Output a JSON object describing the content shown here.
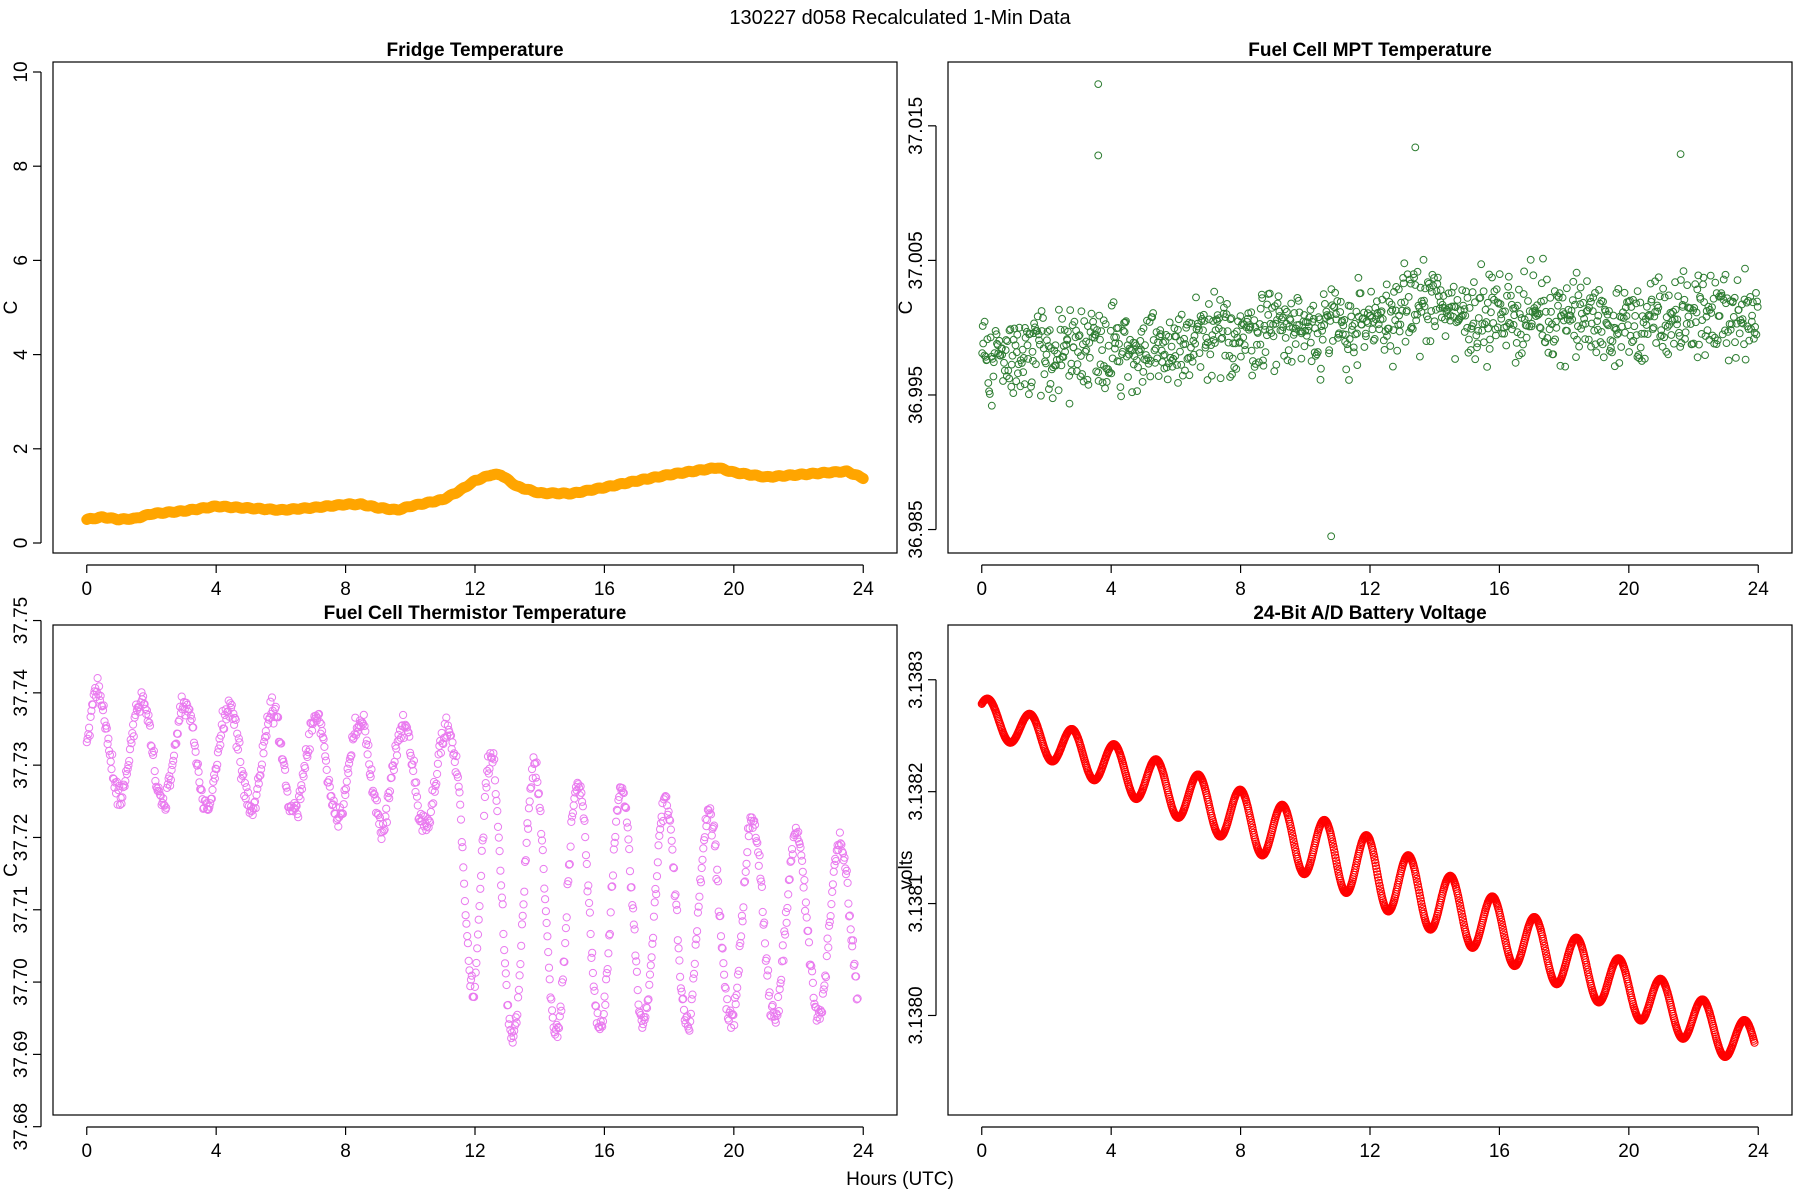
{
  "main_title": "130227   d058   Recalculated 1-Min Data",
  "xlabel": "Hours (UTC)",
  "colors": {
    "fridge": "#FFA500",
    "mpt": "#2E7D32",
    "thermistor": "#E97AEF",
    "battery": "#FF0000"
  },
  "chart_data": [
    {
      "type": "line",
      "title": "Fridge Temperature",
      "ylabel": "C",
      "xlabel": "",
      "xlim": [
        0,
        24
      ],
      "ylim": [
        0,
        10
      ],
      "xticks": [
        0,
        4,
        8,
        12,
        16,
        20,
        24
      ],
      "xtick_labels": [
        "0",
        "4",
        "8",
        "12",
        "16",
        "20",
        "24"
      ],
      "yticks": [
        0,
        2,
        4,
        6,
        8,
        10
      ],
      "ytick_labels": [
        "0",
        "2",
        "4",
        "6",
        "8",
        "10"
      ],
      "series": [
        {
          "color": "#FFA500",
          "x": [
            0,
            0.5,
            1,
            1.5,
            2,
            3,
            4,
            5,
            6,
            7,
            8,
            8.5,
            9,
            9.6,
            10,
            11,
            11.5,
            12,
            12.5,
            12.8,
            13.3,
            14,
            15,
            16,
            17,
            18,
            19,
            19.5,
            20,
            21,
            22,
            23,
            23.5,
            24
          ],
          "y": [
            0.5,
            0.55,
            0.5,
            0.52,
            0.62,
            0.68,
            0.78,
            0.74,
            0.7,
            0.75,
            0.82,
            0.82,
            0.75,
            0.7,
            0.78,
            0.92,
            1.1,
            1.32,
            1.45,
            1.45,
            1.2,
            1.06,
            1.05,
            1.18,
            1.32,
            1.45,
            1.55,
            1.6,
            1.5,
            1.4,
            1.45,
            1.5,
            1.52,
            1.38
          ]
        }
      ]
    },
    {
      "type": "scatter",
      "title": "Fuel Cell MPT Temperature",
      "ylabel": "C",
      "xlabel": "",
      "xlim": [
        0,
        24
      ],
      "ylim": [
        36.984,
        37.019
      ],
      "xticks": [
        0,
        4,
        8,
        12,
        16,
        20,
        24
      ],
      "xtick_labels": [
        "0",
        "4",
        "8",
        "12",
        "16",
        "20",
        "24"
      ],
      "yticks": [
        36.985,
        36.995,
        37.005,
        37.015
      ],
      "ytick_labels": [
        "36.985",
        "36.995",
        "37.005",
        "37.015"
      ],
      "series": [
        {
          "color": "#2E7D32",
          "x": [
            0,
            2,
            3.5,
            5,
            7,
            9,
            11,
            12,
            13.5,
            15,
            16,
            18,
            20,
            22,
            24
          ],
          "y": [
            36.998,
            36.998,
            36.999,
            36.998,
            36.999,
            37.0,
            37.0,
            37.0,
            37.002,
            37.001,
            37.001,
            37.001,
            37.0,
            37.001,
            37.001
          ],
          "spread": 0.0046,
          "outliers": [
            [
              3.6,
              37.0181
            ],
            [
              3.6,
              37.0128
            ],
            [
              13.4,
              37.0134
            ],
            [
              21.6,
              37.0129
            ],
            [
              10.8,
              36.9845
            ]
          ]
        }
      ]
    },
    {
      "type": "scatter",
      "title": "Fuel Cell Thermistor Temperature",
      "ylabel": "C",
      "xlabel": "",
      "xlim": [
        0,
        24
      ],
      "ylim": [
        37.683,
        37.748
      ],
      "xticks": [
        0,
        4,
        8,
        12,
        16,
        20,
        24
      ],
      "xtick_labels": [
        "0",
        "4",
        "8",
        "12",
        "16",
        "20",
        "24"
      ],
      "yticks": [
        37.68,
        37.69,
        37.7,
        37.71,
        37.72,
        37.73,
        37.74,
        37.75
      ],
      "ytick_labels": [
        "37.68",
        "37.69",
        "37.70",
        "37.71",
        "37.72",
        "37.73",
        "37.74",
        "37.75"
      ],
      "series": [
        {
          "color": "#E97AEF",
          "x": [
            0,
            11.5,
            12,
            24
          ],
          "center": [
            37.733,
            37.728,
            37.712,
            37.707
          ],
          "amplitude": [
            0.007,
            0.007,
            0.02,
            0.011
          ],
          "period_hours": 1.35
        }
      ]
    },
    {
      "type": "line",
      "title": "24-Bit A/D Battery Voltage",
      "ylabel": "volts",
      "xlabel": "",
      "xlim": [
        0,
        24
      ],
      "ylim": [
        3.13792,
        3.13834
      ],
      "xticks": [
        0,
        4,
        8,
        12,
        16,
        20,
        24
      ],
      "xtick_labels": [
        "0",
        "4",
        "8",
        "12",
        "16",
        "20",
        "24"
      ],
      "yticks": [
        3.138,
        3.1381,
        3.1382,
        3.1383
      ],
      "ytick_labels": [
        "3.1380",
        "3.1381",
        "3.1382",
        "3.1383"
      ],
      "series": [
        {
          "color": "#FF0000",
          "x": [
            0,
            12,
            24
          ],
          "trend": [
            3.13827,
            3.13813,
            3.13797
          ],
          "amplitude": [
            1.5e-05,
            3e-05,
            2e-05
          ],
          "period_hours": 1.3
        }
      ]
    }
  ]
}
